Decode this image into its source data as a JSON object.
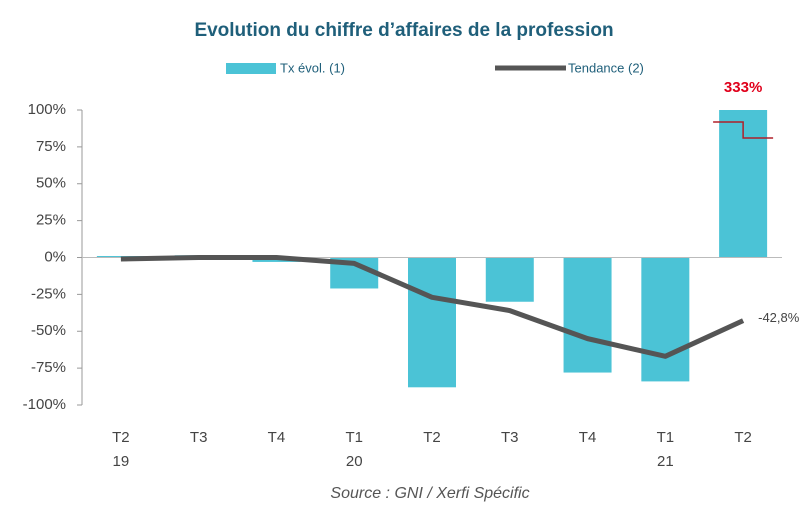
{
  "chart_data": {
    "type": "bar_line",
    "title": "Evolution du chiffre d’affaires de la profession",
    "source": "Source : GNI / Xerfi Spécific",
    "categories": [
      "T2",
      "T3",
      "T4",
      "T1",
      "T2",
      "T3",
      "T4",
      "T1",
      "T2"
    ],
    "category_years": [
      "19",
      null,
      null,
      "20",
      null,
      null,
      null,
      "21",
      null
    ],
    "series": [
      {
        "name": "Tx évol. (1)",
        "kind": "bar",
        "color": "#4bc3d6",
        "values": [
          1,
          1.5,
          -3,
          -21,
          -88,
          -30,
          -78,
          -84,
          333
        ],
        "value_labels": [
          null,
          null,
          null,
          null,
          null,
          null,
          null,
          null,
          "333%"
        ]
      },
      {
        "name": "Tendance (2)",
        "kind": "line",
        "color": "#555555",
        "values": [
          -1,
          0,
          0,
          -4,
          -27,
          -36,
          -55,
          -67,
          -42.8
        ],
        "value_labels": [
          null,
          null,
          null,
          null,
          null,
          null,
          null,
          null,
          "-42,8%"
        ]
      }
    ],
    "ylim": [
      -100,
      100
    ],
    "yticks": [
      {
        "value": -100,
        "label": "-100%"
      },
      {
        "value": -75,
        "label": "-75%"
      },
      {
        "value": -50,
        "label": "-50%"
      },
      {
        "value": -25,
        "label": "-25%"
      },
      {
        "value": 0,
        "label": "0%"
      },
      {
        "value": 25,
        "label": "25%"
      },
      {
        "value": 50,
        "label": "50%"
      },
      {
        "value": 75,
        "label": "75%"
      },
      {
        "value": 100,
        "label": "100%"
      }
    ]
  }
}
